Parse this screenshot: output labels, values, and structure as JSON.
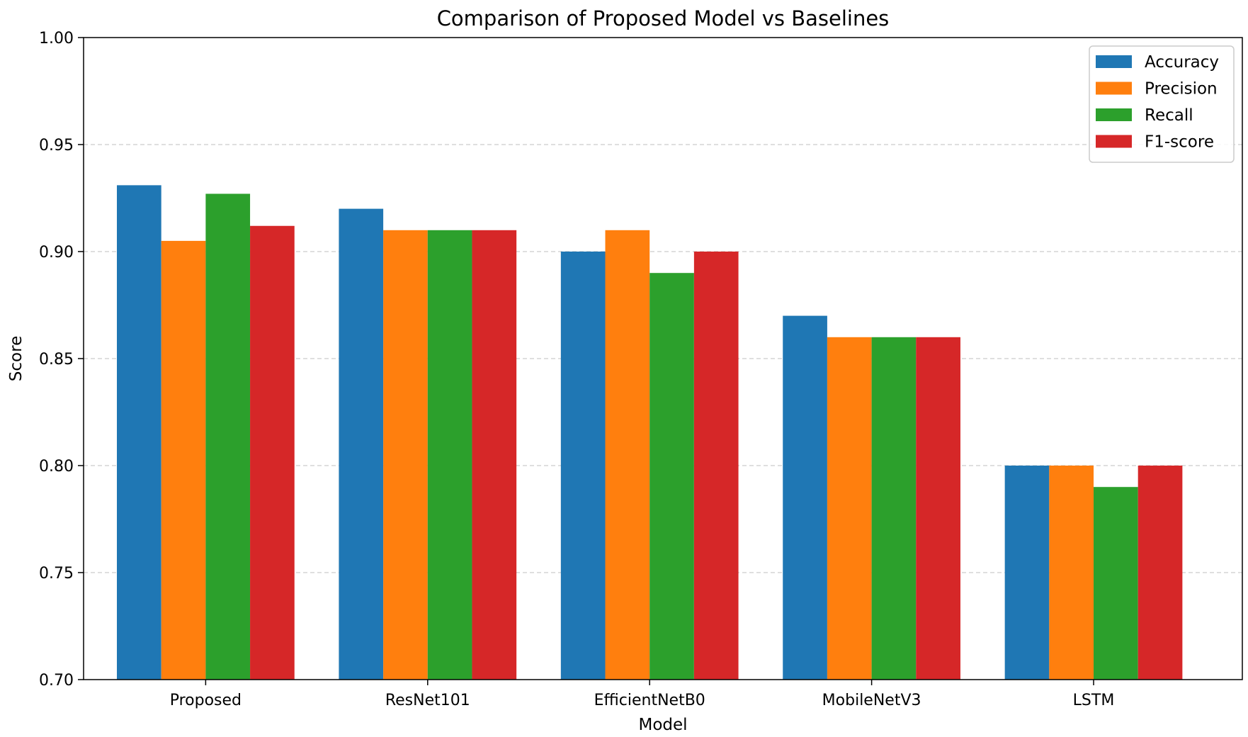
{
  "chart_data": {
    "type": "bar",
    "title": "Comparison of Proposed Model vs Baselines",
    "xlabel": "Model",
    "ylabel": "Score",
    "ylim": [
      0.7,
      1.0
    ],
    "yticks": [
      0.7,
      0.75,
      0.8,
      0.85,
      0.9,
      0.95,
      1.0
    ],
    "ytick_labels": [
      "0.70",
      "0.75",
      "0.80",
      "0.85",
      "0.90",
      "0.95",
      "1.00"
    ],
    "categories": [
      "Proposed",
      "ResNet101",
      "EfficientNetB0",
      "MobileNetV3",
      "LSTM"
    ],
    "series": [
      {
        "name": "Accuracy",
        "color": "#1f77b4",
        "values": [
          0.931,
          0.92,
          0.9,
          0.87,
          0.8
        ]
      },
      {
        "name": "Precision",
        "color": "#ff7f0e",
        "values": [
          0.905,
          0.91,
          0.91,
          0.86,
          0.8
        ]
      },
      {
        "name": "Recall",
        "color": "#2ca02c",
        "values": [
          0.927,
          0.91,
          0.89,
          0.86,
          0.79
        ]
      },
      {
        "name": "F1-score",
        "color": "#d62728",
        "values": [
          0.912,
          0.91,
          0.9,
          0.86,
          0.8
        ]
      }
    ],
    "grid": {
      "y": true,
      "x": false,
      "style": "dashed"
    },
    "legend": "top-right"
  }
}
